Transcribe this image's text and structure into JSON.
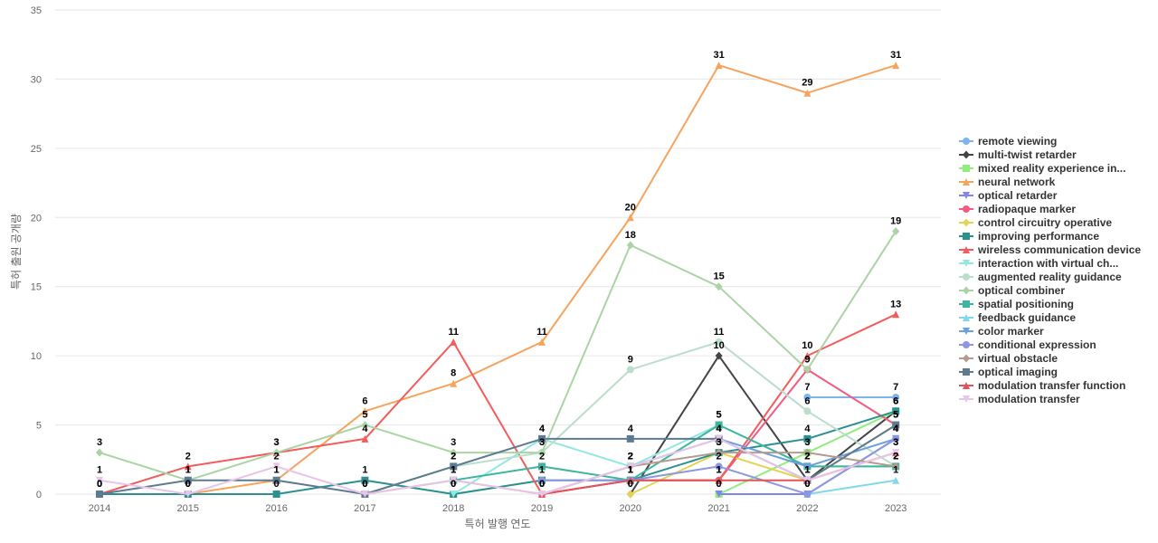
{
  "chart_data": {
    "type": "line",
    "xlabel": "특허 발행 연도",
    "ylabel": "특허 출원 공개량",
    "ylim": [
      0,
      35
    ],
    "yticks": [
      0,
      5,
      10,
      15,
      20,
      25,
      30,
      35
    ],
    "categories": [
      "2014",
      "2015",
      "2016",
      "2017",
      "2018",
      "2019",
      "2020",
      "2021",
      "2022",
      "2023"
    ],
    "legend_position": "right",
    "series": [
      {
        "name": "remote viewing",
        "color": "#7cb5ec",
        "marker": "circle",
        "values": [
          null,
          null,
          null,
          null,
          null,
          null,
          null,
          null,
          7,
          7
        ]
      },
      {
        "name": "multi-twist retarder",
        "color": "#434348",
        "marker": "diamond",
        "values": [
          null,
          null,
          null,
          null,
          null,
          null,
          0,
          10,
          1,
          6
        ]
      },
      {
        "name": "mixed reality experience in...",
        "color": "#90ed7d",
        "marker": "square",
        "values": [
          null,
          null,
          null,
          null,
          null,
          null,
          null,
          0,
          3,
          6
        ]
      },
      {
        "name": "neural network",
        "color": "#f7a35c",
        "marker": "triangle",
        "values": [
          0,
          0,
          1,
          6,
          8,
          11,
          20,
          31,
          29,
          31
        ]
      },
      {
        "name": "optical retarder",
        "color": "#8085e9",
        "marker": "triangle-down",
        "values": [
          null,
          null,
          null,
          null,
          null,
          null,
          null,
          0,
          0,
          4
        ]
      },
      {
        "name": "radiopaque marker",
        "color": "#f15c80",
        "marker": "circle",
        "values": [
          null,
          null,
          null,
          null,
          null,
          0,
          1,
          1,
          9,
          5
        ]
      },
      {
        "name": "control circuitry operative",
        "color": "#e4d354",
        "marker": "diamond",
        "values": [
          null,
          null,
          null,
          null,
          null,
          null,
          0,
          3,
          1,
          5
        ]
      },
      {
        "name": "improving performance",
        "color": "#2b908f",
        "marker": "square",
        "values": [
          0,
          0,
          0,
          1,
          0,
          1,
          1,
          3,
          4,
          6
        ]
      },
      {
        "name": "wireless communication device",
        "color": "#f45b5b",
        "marker": "triangle",
        "values": [
          0,
          2,
          3,
          4,
          11,
          0,
          1,
          1,
          10,
          13
        ]
      },
      {
        "name": "interaction with virtual ch...",
        "color": "#91e8e1",
        "marker": "triangle-down",
        "values": [
          null,
          null,
          null,
          null,
          0,
          4,
          2,
          5,
          2,
          2
        ]
      },
      {
        "name": "augmented reality guidance",
        "color": "#bbddcc",
        "marker": "circle",
        "values": [
          null,
          null,
          null,
          0,
          2,
          3,
          9,
          11,
          6,
          2
        ]
      },
      {
        "name": "optical combiner",
        "color": "#aad4a4",
        "marker": "diamond",
        "values": [
          3,
          1,
          3,
          5,
          3,
          3,
          18,
          15,
          9,
          19
        ]
      },
      {
        "name": "spatial positioning",
        "color": "#3fb5a0",
        "marker": "square",
        "values": [
          null,
          null,
          null,
          null,
          1,
          2,
          1,
          5,
          2,
          2
        ]
      },
      {
        "name": "feedback guidance",
        "color": "#80d8ea",
        "marker": "triangle",
        "values": [
          null,
          null,
          null,
          null,
          null,
          null,
          null,
          null,
          0,
          1
        ]
      },
      {
        "name": "color marker",
        "color": "#6a9fe0",
        "marker": "triangle-down",
        "values": [
          null,
          null,
          null,
          null,
          null,
          0,
          2,
          4,
          2,
          4
        ]
      },
      {
        "name": "conditional expression",
        "color": "#8d96e0",
        "marker": "circle",
        "values": [
          null,
          null,
          null,
          null,
          null,
          1,
          1,
          2,
          0,
          4
        ]
      },
      {
        "name": "virtual obstacle",
        "color": "#b59a8d",
        "marker": "diamond",
        "values": [
          null,
          null,
          null,
          0,
          1,
          0,
          2,
          3,
          3,
          2
        ]
      },
      {
        "name": "optical imaging",
        "color": "#5c7a90",
        "marker": "square",
        "values": [
          0,
          1,
          1,
          0,
          2,
          4,
          4,
          4,
          1,
          5
        ]
      },
      {
        "name": "modulation transfer function",
        "color": "#e0545a",
        "marker": "triangle",
        "values": [
          null,
          null,
          null,
          null,
          null,
          0,
          1,
          1,
          1,
          3
        ]
      },
      {
        "name": "modulation transfer",
        "color": "#e8c4e8",
        "marker": "triangle-down",
        "values": [
          1,
          0,
          2,
          0,
          1,
          0,
          2,
          4,
          1,
          3
        ]
      }
    ]
  }
}
